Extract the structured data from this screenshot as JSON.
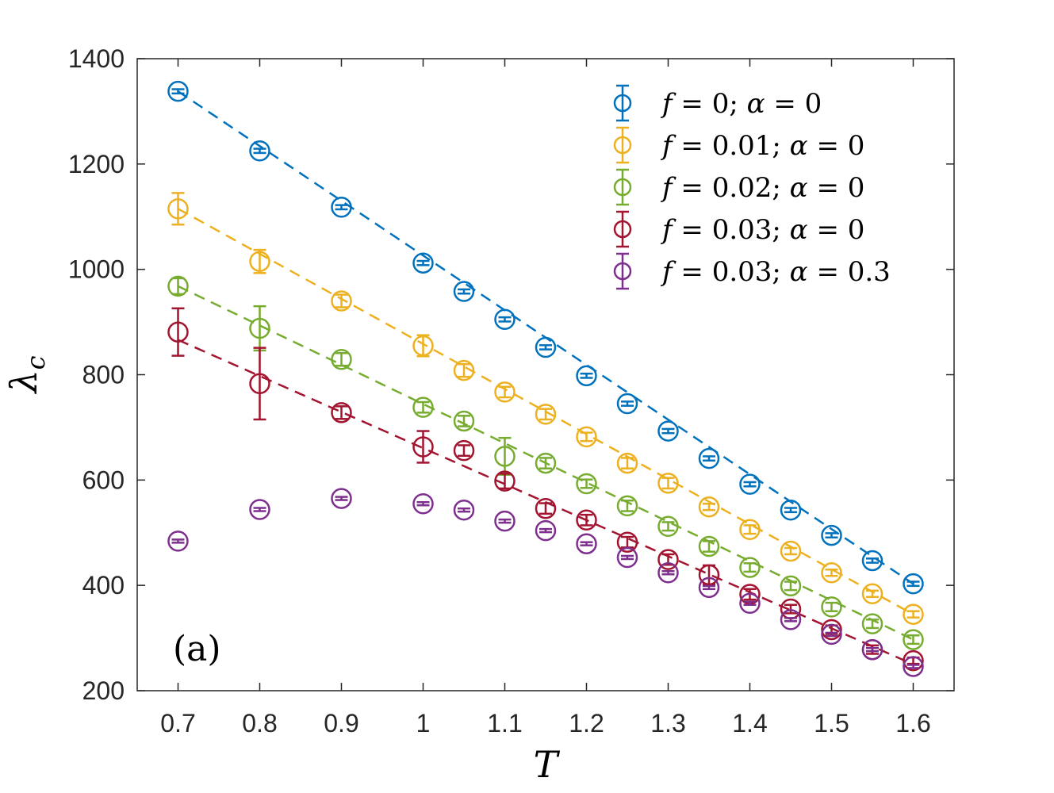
{
  "chart_data": {
    "type": "scatter",
    "panel_label": "(a)",
    "xlabel": "T",
    "ylabel_symbol": "λ",
    "ylabel_subscript": "c",
    "xlim": [
      0.65,
      1.65
    ],
    "ylim": [
      200,
      1400
    ],
    "x_ticks": [
      0.7,
      0.8,
      0.9,
      1,
      1.1,
      1.2,
      1.3,
      1.4,
      1.5,
      1.6
    ],
    "x_tick_labels": [
      "0.7",
      "0.8",
      "0.9",
      "1",
      "1.1",
      "1.2",
      "1.3",
      "1.4",
      "1.5",
      "1.6"
    ],
    "y_ticks": [
      200,
      400,
      600,
      800,
      1000,
      1200,
      1400
    ],
    "y_tick_labels": [
      "200",
      "400",
      "600",
      "800",
      "1000",
      "1200",
      "1400"
    ],
    "grid": false,
    "legend_position": "top-right",
    "x": [
      0.7,
      0.8,
      0.9,
      1.0,
      1.05,
      1.1,
      1.15,
      1.2,
      1.25,
      1.3,
      1.35,
      1.4,
      1.45,
      1.5,
      1.55,
      1.6
    ],
    "series": [
      {
        "name_plain": "f = 0; α = 0",
        "f": "0",
        "alpha": "0",
        "color": "#0072BD",
        "values": [
          1338,
          1225,
          1118,
          1012,
          958,
          905,
          852,
          798,
          745,
          693,
          641,
          592,
          543,
          495,
          447,
          403
        ],
        "errors": [
          4,
          4,
          4,
          4,
          4,
          4,
          4,
          4,
          4,
          4,
          4,
          4,
          4,
          4,
          4,
          4
        ],
        "fit": [
          1338,
          403
        ]
      },
      {
        "name_plain": "f = 0.01; α = 0",
        "f": "0.01",
        "alpha": "0",
        "color": "#EDB120",
        "values": [
          1115,
          1015,
          940,
          855,
          808,
          767,
          725,
          682,
          632,
          594,
          549,
          506,
          465,
          424,
          384,
          345
        ],
        "errors": [
          30,
          22,
          12,
          20,
          12,
          10,
          10,
          8,
          10,
          10,
          6,
          8,
          6,
          6,
          6,
          6
        ],
        "fit": [
          1115,
          345
        ]
      },
      {
        "name_plain": "f = 0.02; α = 0",
        "f": "0.02",
        "alpha": "0",
        "color": "#77AC30",
        "values": [
          968,
          888,
          829,
          738,
          712,
          645,
          632,
          593,
          551,
          512,
          474,
          434,
          399,
          359,
          327,
          297
        ],
        "errors": [
          15,
          42,
          12,
          10,
          10,
          35,
          10,
          8,
          10,
          8,
          10,
          8,
          8,
          8,
          8,
          8
        ],
        "fit": [
          968,
          297
        ]
      },
      {
        "name_plain": "f = 0.03; α = 0",
        "f": "0.03",
        "alpha": "0",
        "color": "#A2142F",
        "values": [
          881,
          783,
          728,
          663,
          656,
          598,
          546,
          524,
          482,
          449,
          420,
          383,
          355,
          316,
          278,
          257
        ],
        "errors": [
          45,
          68,
          12,
          30,
          10,
          14,
          10,
          10,
          10,
          10,
          18,
          10,
          8,
          8,
          8,
          6
        ],
        "fit": [
          866,
          250
        ]
      },
      {
        "name_plain": "f = 0.03; α = 0.3",
        "f": "0.03",
        "alpha": "0.3",
        "color": "#7E2F8E",
        "values": [
          484,
          544,
          565,
          555,
          543,
          522,
          504,
          479,
          453,
          424,
          396,
          366,
          335,
          307,
          278,
          246
        ],
        "errors": [
          3,
          3,
          3,
          3,
          3,
          3,
          3,
          3,
          3,
          3,
          3,
          3,
          3,
          3,
          3,
          3
        ],
        "fit": null
      }
    ]
  }
}
